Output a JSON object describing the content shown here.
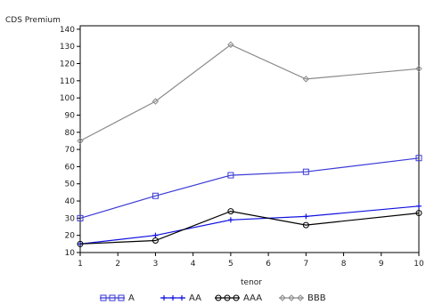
{
  "chart_data": {
    "type": "line",
    "title": "",
    "ylabel": "CDS Premium",
    "xlabel": "tenor",
    "x": [
      1,
      3,
      5,
      7,
      10
    ],
    "xticks": [
      "1",
      "2",
      "3",
      "4",
      "5",
      "6",
      "7",
      "8",
      "9",
      "10"
    ],
    "yticks": [
      "10",
      "20",
      "30",
      "40",
      "50",
      "60",
      "70",
      "80",
      "90",
      "100",
      "110",
      "120",
      "130",
      "140"
    ],
    "xlim": [
      1,
      10
    ],
    "ylim": [
      10,
      142
    ],
    "grid": false,
    "legend_position": "bottom",
    "series": [
      {
        "name": "A",
        "values": [
          30,
          43,
          55,
          57,
          65
        ],
        "color": "#3a3ad6",
        "marker": "square"
      },
      {
        "name": "AA",
        "values": [
          15,
          20,
          29,
          31,
          37
        ],
        "color": "#1010e0",
        "marker": "plus"
      },
      {
        "name": "AAA",
        "values": [
          15,
          17,
          34,
          26,
          33
        ],
        "color": "#000000",
        "marker": "circle"
      },
      {
        "name": "BBB",
        "values": [
          75,
          98,
          131,
          111,
          117
        ],
        "color": "#8a8a8a",
        "marker": "diamond"
      }
    ]
  }
}
